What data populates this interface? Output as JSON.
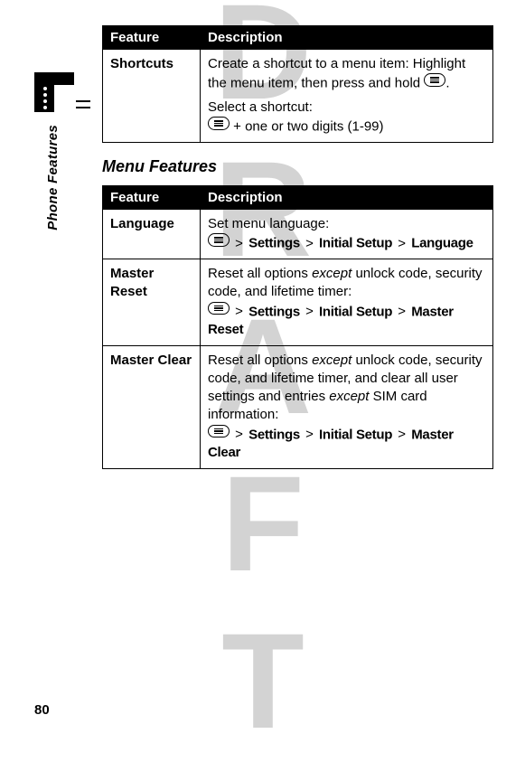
{
  "watermark": "DRAFT",
  "side_label": "Phone Features",
  "page_number": "80",
  "table1": {
    "headers": [
      "Feature",
      "Description"
    ],
    "row": {
      "feature": "Shortcuts",
      "line1": "Create a shortcut to a menu item: Highlight the menu item, then press and hold ",
      "line1_end": ".",
      "line2": "Select a shortcut:",
      "line3_pre": "",
      "line3_post": " + one or two digits (1-99)"
    }
  },
  "heading": "Menu Features",
  "table2": {
    "headers": [
      "Feature",
      "Description"
    ],
    "rows": [
      {
        "feature": "Language",
        "plain": "Set menu language:",
        "path": [
          "Settings",
          "Initial Setup",
          "Language"
        ]
      },
      {
        "feature": "Master Reset",
        "plain_pre": "Reset all options ",
        "italic": "except",
        "plain_post": " unlock code, security code, and lifetime timer:",
        "path": [
          "Settings",
          "Initial Setup",
          "Master Reset"
        ]
      },
      {
        "feature": "Master Clear",
        "plain_pre": "Reset all options ",
        "italic": "except",
        "plain_post": " unlock code, security code, and lifetime timer, and clear all user settings and entries ",
        "italic2": "except",
        "plain_post2": " SIM card information:",
        "path": [
          "Settings",
          "Initial Setup",
          "Master Clear"
        ]
      }
    ]
  },
  "gt": ">",
  "colors": {
    "text": "#000000",
    "bg": "#ffffff",
    "watermark": "#cfcfcf",
    "header_bg": "#000000",
    "header_fg": "#ffffff"
  }
}
